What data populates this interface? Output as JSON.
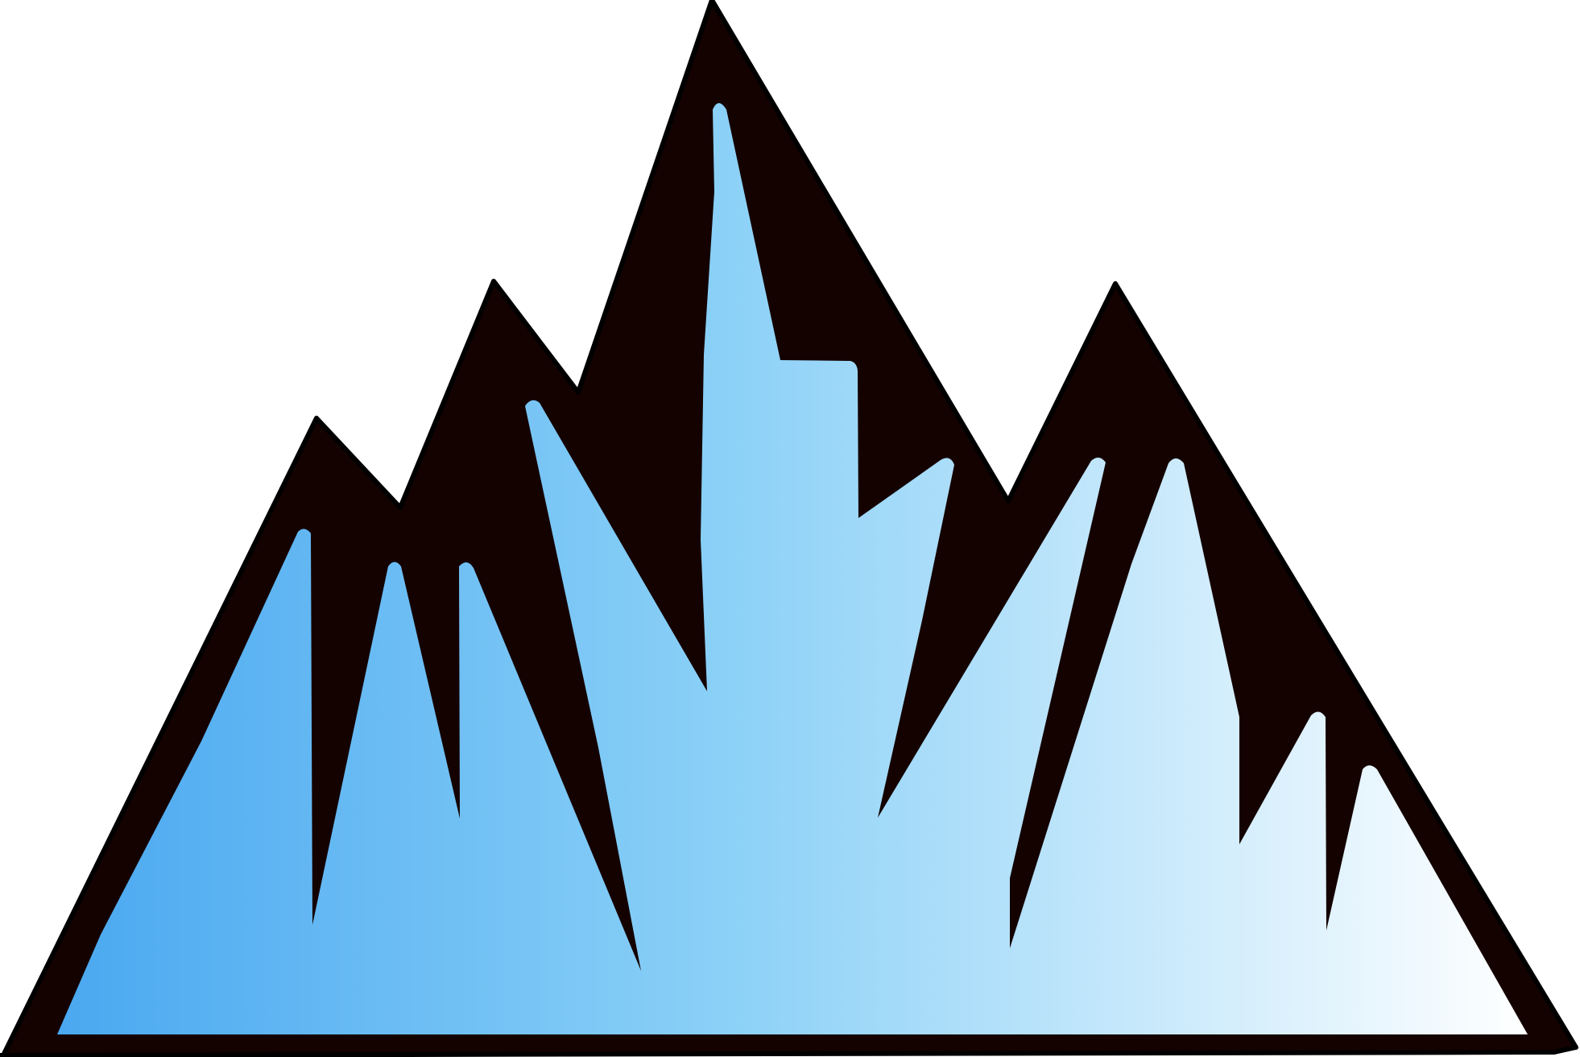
{
  "illustration": {
    "subject": "mountain-icon",
    "colors": {
      "background": "#ffffff",
      "outline": "#140200",
      "gradient_left": "#4aa8f0",
      "gradient_middle": "#8ad0f7",
      "gradient_right": "#ffffff"
    }
  }
}
